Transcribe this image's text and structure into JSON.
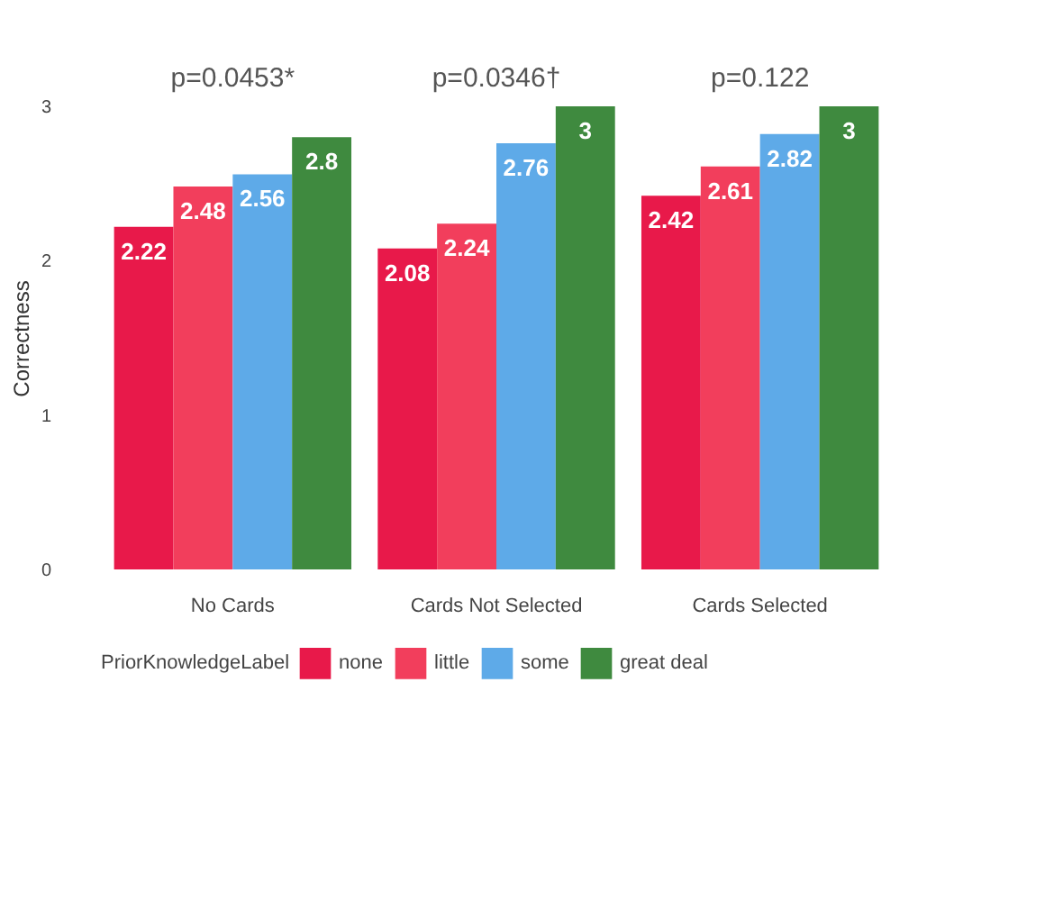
{
  "chart_data": {
    "type": "bar",
    "ylabel": "Correctness",
    "legend_title": "PriorKnowledgeLabel",
    "categories": [
      "No Cards",
      "Cards Not Selected",
      "Cards Selected"
    ],
    "series": [
      {
        "name": "none",
        "color": "#e8194a",
        "values": [
          2.22,
          2.08,
          2.42
        ]
      },
      {
        "name": "little",
        "color": "#f23e5c",
        "values": [
          2.48,
          2.24,
          2.61
        ]
      },
      {
        "name": "some",
        "color": "#5eaae8",
        "values": [
          2.56,
          2.76,
          2.82
        ]
      },
      {
        "name": "great deal",
        "color": "#3f8a3f",
        "values": [
          2.8,
          3,
          3
        ]
      }
    ],
    "ylim": [
      0,
      3
    ],
    "yticks": [
      0,
      1,
      2,
      3
    ],
    "grid": false,
    "legend": "bottom",
    "data_labels": true,
    "annotations": [
      "p=0.0453*",
      "p=0.0346†",
      "p=0.122"
    ]
  }
}
